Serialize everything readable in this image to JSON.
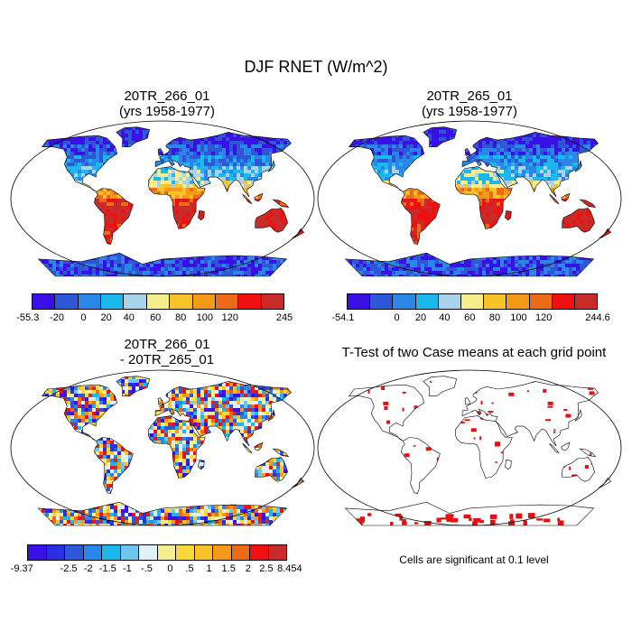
{
  "title": "DJF RNET (W/m^2)",
  "panels": [
    {
      "title_line1": "20TR_266_01",
      "title_line2": "(yrs 1958-1977)"
    },
    {
      "title_line1": "20TR_265_01",
      "title_line2": "(yrs 1958-1977)"
    },
    {
      "title_line1": "20TR_266_01",
      "title_line2": "- 20TR_265_01"
    },
    {
      "title_line1": "T-Test of two Case means at each grid point",
      "note": "Cells are significant at 0.1 level"
    }
  ],
  "colorbars": {
    "absolute_colors": [
      "#3a10e6",
      "#2f56d6",
      "#2a86e8",
      "#1bb8ee",
      "#a9d3ea",
      "#f6ee8d",
      "#f8c22a",
      "#f59a18",
      "#ed6a17",
      "#f11010",
      "#c92a2a"
    ],
    "difference_colors": [
      "#3a10e6",
      "#2830e0",
      "#2f56d6",
      "#2a86e8",
      "#1bb8ee",
      "#6ec6ee",
      "#dff0f6",
      "#f6ee8d",
      "#f8d93a",
      "#f8c22a",
      "#f59a18",
      "#ed6a17",
      "#f11010",
      "#c92a2a"
    ],
    "panel1_labels": [
      "-55.3",
      "-20",
      "0",
      "20",
      "40",
      "60",
      "80",
      "100",
      "120",
      "245"
    ],
    "panel2_labels": [
      "-54.1",
      "0",
      "20",
      "40",
      "60",
      "80",
      "100",
      "120",
      "244.6"
    ],
    "panel3_labels": [
      "-9.37",
      "-2.5",
      "-2",
      "-1.5",
      "-1",
      "-.5",
      "0",
      ".5",
      "1",
      "1.5",
      "2",
      "2.5",
      "8.454"
    ]
  },
  "significance_color": "#e41010"
}
